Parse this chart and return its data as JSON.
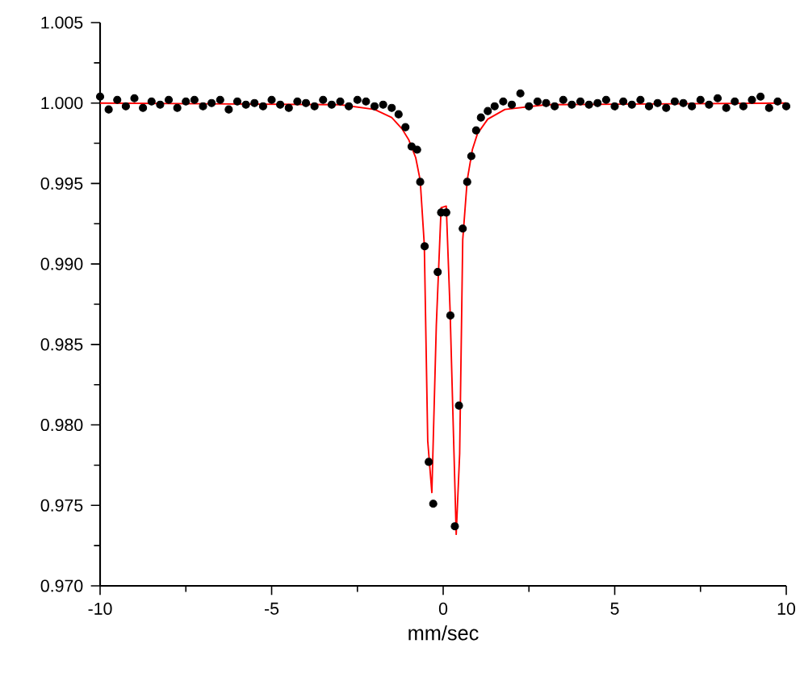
{
  "chart_data": {
    "type": "scatter",
    "xlabel": "mm/sec",
    "xlim": [
      -10,
      10
    ],
    "xticks": [
      -10,
      -5,
      0,
      5,
      10
    ],
    "ylim": [
      0.97,
      1.005
    ],
    "yticks": [
      {
        "value": 0.97,
        "label": "0.970"
      },
      {
        "value": 0.975,
        "label": "0.975"
      },
      {
        "value": 0.98,
        "label": "0.980"
      },
      {
        "value": 0.985,
        "label": "0.985"
      },
      {
        "value": 0.99,
        "label": "0.990"
      },
      {
        "value": 0.995,
        "label": "0.995"
      },
      {
        "value": 1.0,
        "label": "1.000"
      },
      {
        "value": 1.005,
        "label": "1.005"
      }
    ],
    "grid": false,
    "marker": "circle",
    "series": [
      {
        "color": "#000000",
        "x": [
          -10,
          -9.75,
          -9.5,
          -9.25,
          -9,
          -8.75,
          -8.5,
          -8.25,
          -8,
          -7.75,
          -7.5,
          -7.25,
          -7,
          -6.75,
          -6.5,
          -6.25,
          -6,
          -5.75,
          -5.5,
          -5.25,
          -5,
          -4.75,
          -4.5,
          -4.25,
          -4,
          -3.75,
          -3.5,
          -3.25,
          -3,
          -2.75,
          -2.5,
          -2.25,
          -2,
          -1.75,
          -1.5,
          -1.3,
          -1.1,
          -0.92,
          -0.76,
          -0.67,
          -0.54,
          -0.42,
          -0.29,
          -0.16,
          -0.06,
          0.09,
          0.21,
          0.34,
          0.46,
          0.57,
          0.7,
          0.82,
          0.96,
          1.1,
          1.3,
          1.5,
          1.75,
          2,
          2.25,
          2.5,
          2.75,
          3,
          3.25,
          3.5,
          3.75,
          4,
          4.25,
          4.5,
          4.75,
          5,
          5.25,
          5.5,
          5.75,
          6,
          6.25,
          6.5,
          6.75,
          7,
          7.25,
          7.5,
          7.75,
          8,
          8.25,
          8.5,
          8.75,
          9,
          9.25,
          9.5,
          9.75,
          10
        ],
        "values": [
          1.0004,
          0.9996,
          1.0002,
          0.9998,
          1.0003,
          0.9997,
          1.0001,
          0.9999,
          1.0002,
          0.9997,
          1.0001,
          1.0002,
          0.9998,
          1.0,
          1.0002,
          0.9996,
          1.0001,
          0.9999,
          1.0,
          0.9998,
          1.0002,
          0.9999,
          0.9997,
          1.0001,
          1.0,
          0.9998,
          1.0002,
          0.9999,
          1.0001,
          0.9998,
          1.0002,
          1.0001,
          0.9998,
          0.9999,
          0.9997,
          0.9993,
          0.9985,
          0.9973,
          0.9971,
          0.9951,
          0.9911,
          0.9777,
          0.9751,
          0.9895,
          0.9932,
          0.9932,
          0.9868,
          0.9737,
          0.9812,
          0.9922,
          0.9951,
          0.9967,
          0.9983,
          0.9991,
          0.9995,
          0.9998,
          1.0001,
          0.9999,
          1.0006,
          0.9998,
          1.0001,
          1.0,
          0.9998,
          1.0002,
          0.9999,
          1.0001,
          0.9999,
          1.0,
          1.0002,
          0.9998,
          1.0001,
          0.9999,
          1.0002,
          0.9998,
          1.0,
          0.9997,
          1.0001,
          1.0,
          0.9998,
          1.0002,
          0.9999,
          1.0003,
          0.9997,
          1.0001,
          0.9998,
          1.0002,
          1.0004,
          0.9997,
          1.0001,
          0.9998
        ]
      },
      {
        "type": "line",
        "color": "#ff0000",
        "marker": "none",
        "x": [
          -10,
          -3,
          -2,
          -1.5,
          -1.2,
          -1,
          -0.8,
          -0.67,
          -0.55,
          -0.45,
          -0.33,
          -0.2,
          -0.06,
          0.09,
          0.2,
          0.38,
          0.48,
          0.57,
          0.7,
          0.85,
          1.0,
          1.3,
          1.8,
          3,
          10
        ],
        "values": [
          1.0,
          0.9999,
          0.9996,
          0.9991,
          0.9984,
          0.9977,
          0.9966,
          0.9952,
          0.9912,
          0.979,
          0.9758,
          0.9862,
          0.9935,
          0.9936,
          0.9872,
          0.9732,
          0.9782,
          0.9915,
          0.9952,
          0.9971,
          0.9981,
          0.999,
          0.9996,
          0.9999,
          1.0
        ]
      }
    ]
  }
}
